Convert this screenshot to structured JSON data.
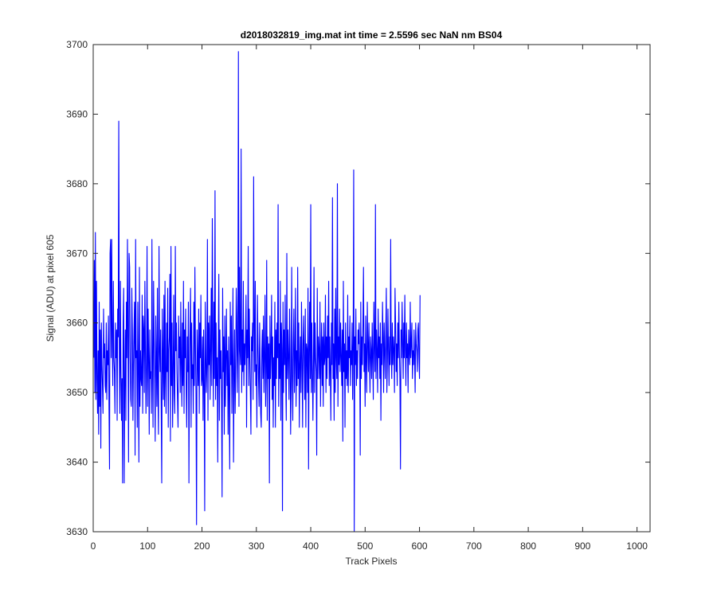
{
  "chart_data": {
    "type": "line",
    "title": "d2018032819_img.mat int time = 2.5596 sec  NaN nm BS04",
    "xlabel": "Track Pixels",
    "ylabel": "Signal (ADU) at pixel 605",
    "xlim": [
      0,
      1024
    ],
    "ylim": [
      3630,
      3700
    ],
    "xticks": [
      0,
      100,
      200,
      300,
      400,
      500,
      600,
      700,
      800,
      900,
      1000
    ],
    "yticks": [
      3630,
      3640,
      3650,
      3660,
      3670,
      3680,
      3690,
      3700
    ],
    "grid": false,
    "legend": "none",
    "line_color": "#0000ff",
    "axis_color": "#262626",
    "series": [
      {
        "x_start": 1,
        "x_step": 1,
        "values": [
          3655,
          3669,
          3650,
          3673,
          3649,
          3666,
          3652,
          3647,
          3656,
          3644,
          3663,
          3648,
          3659,
          3642,
          3660,
          3654,
          3651,
          3647,
          3662,
          3655,
          3657,
          3651,
          3650,
          3660,
          3649,
          3656,
          3654,
          3661,
          3648,
          3639,
          3670,
          3672,
          3655,
          3672,
          3658,
          3651,
          3666,
          3655,
          3653,
          3647,
          3660,
          3655,
          3659,
          3646,
          3662,
          3658,
          3689,
          3655,
          3647,
          3666,
          3653,
          3646,
          3652,
          3637,
          3660,
          3665,
          3637,
          3651,
          3659,
          3646,
          3663,
          3655,
          3672,
          3658,
          3640,
          3670,
          3668,
          3655,
          3649,
          3648,
          3665,
          3659,
          3646,
          3654,
          3659,
          3663,
          3641,
          3672,
          3655,
          3656,
          3645,
          3663,
          3653,
          3640,
          3668,
          3648,
          3656,
          3652,
          3651,
          3664,
          3647,
          3661,
          3659,
          3650,
          3666,
          3656,
          3647,
          3654,
          3671,
          3648,
          3662,
          3655,
          3644,
          3659,
          3652,
          3653,
          3647,
          3672,
          3654,
          3645,
          3666,
          3658,
          3652,
          3643,
          3661,
          3655,
          3648,
          3665,
          3650,
          3644,
          3671,
          3656,
          3653,
          3659,
          3648,
          3637,
          3662,
          3655,
          3649,
          3664,
          3648,
          3666,
          3652,
          3647,
          3660,
          3653,
          3665,
          3645,
          3656,
          3658,
          3667,
          3643,
          3671,
          3651,
          3660,
          3645,
          3653,
          3664,
          3650,
          3647,
          3671,
          3656,
          3660,
          3653,
          3649,
          3645,
          3661,
          3655,
          3658,
          3650,
          3663,
          3654,
          3648,
          3660,
          3651,
          3666,
          3647,
          3659,
          3655,
          3662,
          3650,
          3645,
          3658,
          3653,
          3663,
          3637,
          3654,
          3659,
          3665,
          3645,
          3660,
          3652,
          3654,
          3647,
          3663,
          3651,
          3668,
          3657,
          3650,
          3631,
          3659,
          3655,
          3651,
          3662,
          3647,
          3660,
          3655,
          3664,
          3651,
          3652,
          3658,
          3646,
          3659,
          3651,
          3633,
          3663,
          3656,
          3650,
          3654,
          3672,
          3646,
          3660,
          3654,
          3661,
          3649,
          3656,
          3665,
          3651,
          3675,
          3658,
          3648,
          3663,
          3652,
          3679,
          3649,
          3660,
          3651,
          3655,
          3640,
          3656,
          3667,
          3646,
          3659,
          3652,
          3656,
          3649,
          3635,
          3665,
          3653,
          3658,
          3644,
          3661,
          3648,
          3655,
          3662,
          3651,
          3656,
          3644,
          3658,
          3650,
          3639,
          3663,
          3654,
          3661,
          3647,
          3655,
          3665,
          3640,
          3652,
          3659,
          3647,
          3653,
          3665,
          3661,
          3650,
          3657,
          3699,
          3648,
          3668,
          3656,
          3654,
          3685,
          3650,
          3659,
          3653,
          3666,
          3651,
          3657,
          3654,
          3658,
          3664,
          3645,
          3659,
          3655,
          3671,
          3651,
          3662,
          3655,
          3650,
          3644,
          3658,
          3656,
          3660,
          3649,
          3681,
          3660,
          3653,
          3666,
          3651,
          3654,
          3645,
          3664,
          3657,
          3652,
          3648,
          3660,
          3654,
          3647,
          3645,
          3656,
          3659,
          3652,
          3661,
          3650,
          3655,
          3664,
          3648,
          3653,
          3669,
          3646,
          3658,
          3652,
          3657,
          3637,
          3661,
          3652,
          3656,
          3664,
          3649,
          3658,
          3645,
          3655,
          3651,
          3663,
          3645,
          3659,
          3652,
          3660,
          3655,
          3677,
          3648,
          3657,
          3652,
          3666,
          3646,
          3660,
          3656,
          3633,
          3663,
          3650,
          3659,
          3654,
          3664,
          3652,
          3646,
          3670,
          3652,
          3659,
          3655,
          3649,
          3662,
          3656,
          3644,
          3651,
          3668,
          3652,
          3646,
          3657,
          3662,
          3650,
          3655,
          3665,
          3648,
          3656,
          3651,
          3668,
          3652,
          3660,
          3645,
          3654,
          3658,
          3650,
          3663,
          3655,
          3645,
          3657,
          3661,
          3654,
          3649,
          3662,
          3645,
          3657,
          3656,
          3650,
          3665,
          3639,
          3656,
          3663,
          3652,
          3677,
          3650,
          3660,
          3653,
          3646,
          3654,
          3668,
          3650,
          3660,
          3655,
          3653,
          3641,
          3665,
          3652,
          3658,
          3656,
          3652,
          3663,
          3648,
          3655,
          3660,
          3651,
          3658,
          3648,
          3660,
          3654,
          3655,
          3664,
          3650,
          3658,
          3652,
          3661,
          3655,
          3666,
          3651,
          3658,
          3653,
          3646,
          3660,
          3654,
          3678,
          3652,
          3657,
          3646,
          3662,
          3650,
          3665,
          3655,
          3652,
          3680,
          3648,
          3658,
          3654,
          3662,
          3653,
          3660,
          3655,
          3651,
          3659,
          3643,
          3666,
          3653,
          3657,
          3645,
          3660,
          3652,
          3656,
          3651,
          3664,
          3650,
          3658,
          3655,
          3661,
          3651,
          3656,
          3654,
          3660,
          3649,
          3657,
          3682,
          3630,
          3658,
          3654,
          3662,
          3651,
          3656,
          3652,
          3659,
          3657,
          3660,
          3655,
          3641,
          3663,
          3652,
          3658,
          3654,
          3660,
          3668,
          3653,
          3657,
          3648,
          3661,
          3655,
          3650,
          3663,
          3657,
          3653,
          3660,
          3655,
          3650,
          3658,
          3656,
          3652,
          3660,
          3655,
          3649,
          3663,
          3657,
          3653,
          3677,
          3652,
          3659,
          3656,
          3650,
          3662,
          3655,
          3658,
          3652,
          3660,
          3646,
          3657,
          3654,
          3663,
          3658,
          3650,
          3660,
          3656,
          3652,
          3659,
          3665,
          3650,
          3655,
          3662,
          3656,
          3651,
          3658,
          3654,
          3672,
          3656,
          3652,
          3660,
          3654,
          3658,
          3656,
          3650,
          3665,
          3660,
          3653,
          3657,
          3651,
          3660,
          3655,
          3663,
          3656,
          3652,
          3639,
          3659,
          3655,
          3663,
          3657,
          3652,
          3660,
          3655,
          3664,
          3656,
          3651,
          3660,
          3655,
          3657,
          3650,
          3659,
          3656,
          3654,
          3663,
          3655,
          3657,
          3660,
          3652,
          3656,
          3654,
          3659,
          3655,
          3650,
          3660,
          3657,
          3656,
          3653,
          3659,
          3660,
          3655,
          3652,
          3664
        ]
      }
    ]
  }
}
